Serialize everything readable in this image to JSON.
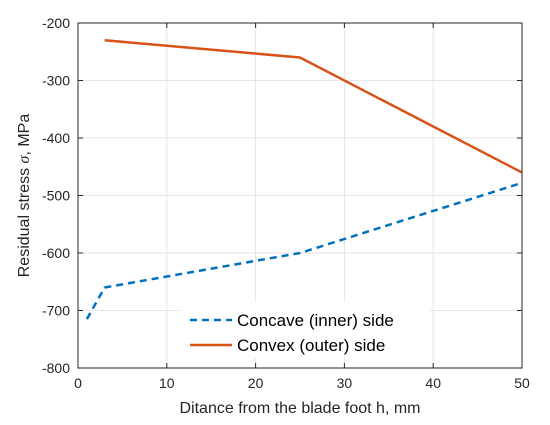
{
  "chart_data": {
    "type": "line",
    "xlabel": "Ditance from the blade foot h, mm",
    "ylabel_prefix": "Residual stress ",
    "ylabel_symbol": "σ",
    "ylabel_suffix": ", MPa",
    "xlim": [
      0,
      50
    ],
    "ylim": [
      -800,
      -200
    ],
    "xticks": [
      0,
      10,
      20,
      30,
      40,
      50
    ],
    "yticks": [
      -800,
      -700,
      -600,
      -500,
      -400,
      -300,
      -200
    ],
    "grid": true,
    "legend_position": "bottom-center",
    "series": [
      {
        "name": "Concave (inner) side",
        "color": "#0072BD",
        "style": "dashed",
        "x": [
          1,
          3,
          25,
          50
        ],
        "y": [
          -715,
          -660,
          -600,
          -478
        ]
      },
      {
        "name": "Convex (outer) side",
        "color": "#D95319",
        "style": "solid",
        "x": [
          3,
          25,
          50
        ],
        "y": [
          -230,
          -260,
          -460
        ]
      }
    ]
  }
}
